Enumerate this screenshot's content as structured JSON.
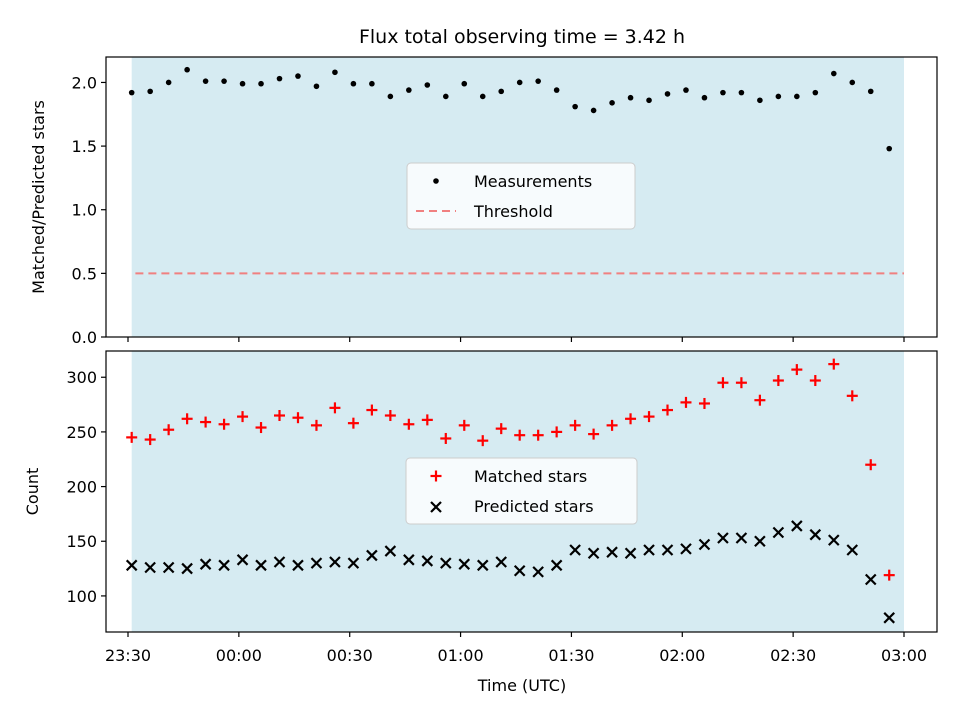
{
  "title": "Flux total observing time = 3.42 h",
  "xlabel": "Time (UTC)",
  "x_ticks": [
    "23:30",
    "00:00",
    "00:30",
    "01:00",
    "01:30",
    "02:00",
    "02:30",
    "03:00"
  ],
  "colors": {
    "shade": "#add8e6",
    "measurement": "#000000",
    "threshold": "#f08080",
    "matched": "#ff0000",
    "predicted": "#000000"
  },
  "chart_data": [
    {
      "type": "scatter",
      "ylabel": "Matched/Predicted stars",
      "ylim": [
        0,
        2.2
      ],
      "y_ticks": [
        "0.0",
        "0.5",
        "1.0",
        "1.5",
        "2.0"
      ],
      "legend": [
        "Measurements",
        "Threshold"
      ],
      "legend_position": "center",
      "shaded_interval": [
        "23:31",
        "03:00"
      ],
      "threshold": 0.5,
      "series": [
        {
          "name": "Measurements",
          "x": [
            "23:31",
            "23:36",
            "23:41",
            "23:46",
            "23:51",
            "23:56",
            "24:01",
            "24:06",
            "24:11",
            "24:16",
            "24:21",
            "24:26",
            "24:31",
            "24:36",
            "24:41",
            "24:46",
            "24:51",
            "24:56",
            "25:01",
            "25:06",
            "25:11",
            "25:16",
            "25:21",
            "25:26",
            "25:31",
            "25:36",
            "25:41",
            "25:46",
            "25:51",
            "25:56",
            "26:01",
            "26:06",
            "26:11",
            "26:16",
            "26:21",
            "26:26",
            "26:31",
            "26:36",
            "26:41",
            "26:46",
            "26:51",
            "26:56",
            "27:01"
          ],
          "values": [
            1.92,
            1.93,
            2.0,
            2.1,
            2.01,
            2.01,
            1.99,
            1.99,
            2.03,
            2.05,
            1.97,
            2.08,
            1.99,
            1.99,
            1.89,
            1.94,
            1.98,
            1.89,
            1.99,
            1.89,
            1.93,
            2.0,
            2.01,
            1.94,
            1.81,
            1.78,
            1.84,
            1.88,
            1.86,
            1.91,
            1.94,
            1.88,
            1.92,
            1.92,
            1.86,
            1.89,
            1.89,
            1.92,
            2.07,
            2.0,
            1.93,
            1.48,
            null
          ]
        }
      ]
    },
    {
      "type": "scatter",
      "ylabel": "Count",
      "ylim": [
        67,
        324
      ],
      "y_ticks": [
        "100",
        "150",
        "200",
        "250",
        "300"
      ],
      "legend": [
        "Matched stars",
        "Predicted stars"
      ],
      "legend_position": "center",
      "shaded_interval": [
        "23:31",
        "03:00"
      ],
      "series": [
        {
          "name": "Matched stars",
          "x": [
            "23:31",
            "23:36",
            "23:41",
            "23:46",
            "23:51",
            "23:56",
            "24:01",
            "24:06",
            "24:11",
            "24:16",
            "24:21",
            "24:26",
            "24:31",
            "24:36",
            "24:41",
            "24:46",
            "24:51",
            "24:56",
            "25:01",
            "25:06",
            "25:11",
            "25:16",
            "25:21",
            "25:26",
            "25:31",
            "25:36",
            "25:41",
            "25:46",
            "25:51",
            "25:56",
            "26:01",
            "26:06",
            "26:11",
            "26:16",
            "26:21",
            "26:26",
            "26:31",
            "26:36",
            "26:41",
            "26:46",
            "26:51",
            "26:56",
            "27:01"
          ],
          "values": [
            245,
            243,
            252,
            262,
            259,
            257,
            264,
            254,
            265,
            263,
            256,
            272,
            258,
            270,
            265,
            257,
            261,
            244,
            256,
            242,
            253,
            247,
            247,
            250,
            256,
            248,
            256,
            262,
            264,
            270,
            277,
            276,
            295,
            295,
            279,
            297,
            307,
            297,
            312,
            283,
            220,
            119,
            null
          ]
        },
        {
          "name": "Predicted stars",
          "x": [
            "23:31",
            "23:36",
            "23:41",
            "23:46",
            "23:51",
            "23:56",
            "24:01",
            "24:06",
            "24:11",
            "24:16",
            "24:21",
            "24:26",
            "24:31",
            "24:36",
            "24:41",
            "24:46",
            "24:51",
            "24:56",
            "25:01",
            "25:06",
            "25:11",
            "25:16",
            "25:21",
            "25:26",
            "25:31",
            "25:36",
            "25:41",
            "25:46",
            "25:51",
            "25:56",
            "26:01",
            "26:06",
            "26:11",
            "26:16",
            "26:21",
            "26:26",
            "26:31",
            "26:36",
            "26:41",
            "26:46",
            "26:51",
            "26:56",
            "27:01"
          ],
          "values": [
            128,
            126,
            126,
            125,
            129,
            128,
            133,
            128,
            131,
            128,
            130,
            131,
            130,
            137,
            141,
            133,
            132,
            130,
            129,
            128,
            131,
            123,
            122,
            128,
            142,
            139,
            140,
            139,
            142,
            142,
            143,
            147,
            153,
            153,
            150,
            158,
            164,
            156,
            151,
            142,
            115,
            80,
            null
          ]
        }
      ]
    }
  ]
}
